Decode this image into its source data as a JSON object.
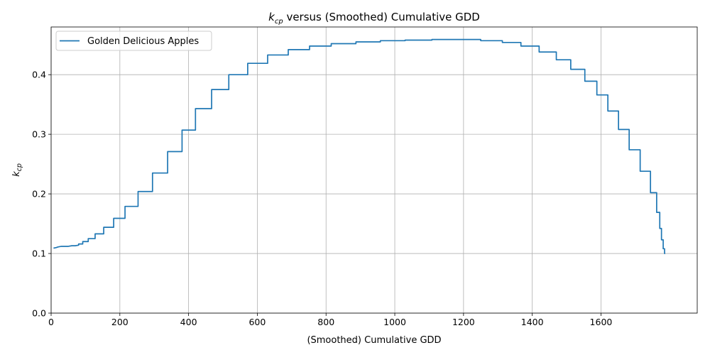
{
  "chart_data": {
    "type": "line",
    "title_parts": {
      "k": "k",
      "sub": "cp",
      "rest": " versus (Smoothed) Cumulative GDD"
    },
    "xlabel": "(Smoothed) Cumulative GDD",
    "ylabel_parts": {
      "k": "k",
      "sub": "cp"
    },
    "xlim": [
      0,
      1880
    ],
    "ylim": [
      0,
      0.48
    ],
    "xticks": [
      0,
      200,
      400,
      600,
      800,
      1000,
      1200,
      1400,
      1600
    ],
    "xtick_labels": [
      "0",
      "200",
      "400",
      "600",
      "800",
      "1000",
      "1200",
      "1400",
      "1600"
    ],
    "yticks": [
      0.0,
      0.1,
      0.2,
      0.3,
      0.4
    ],
    "ytick_labels": [
      "0.0",
      "0.1",
      "0.2",
      "0.3",
      "0.4"
    ],
    "grid": true,
    "legend_position": "upper-left",
    "series": [
      {
        "name": "Golden Delicious Apples",
        "color": "#1f77b4",
        "x": [
          7,
          15,
          20,
          30,
          40,
          50,
          60,
          70,
          80,
          80,
          92,
          92,
          108,
          108,
          128,
          128,
          153,
          153,
          182,
          182,
          215,
          215,
          253,
          253,
          295,
          295,
          339,
          339,
          381,
          381,
          420,
          420,
          467,
          467,
          517,
          517,
          572,
          572,
          630,
          630,
          690,
          690,
          752,
          752,
          815,
          815,
          887,
          887,
          958,
          958,
          1030,
          1030,
          1108,
          1108,
          1190,
          1190,
          1250,
          1250,
          1313,
          1313,
          1367,
          1367,
          1420,
          1420,
          1470,
          1470,
          1512,
          1512,
          1553,
          1553,
          1588,
          1588,
          1620,
          1620,
          1651,
          1651,
          1682,
          1682,
          1714,
          1714,
          1744,
          1744,
          1762,
          1762,
          1771,
          1771,
          1776,
          1776,
          1781,
          1781,
          1785,
          1785,
          1787
        ],
        "y": [
          0.109,
          0.11,
          0.111,
          0.112,
          0.112,
          0.112,
          0.113,
          0.113,
          0.114,
          0.116,
          0.116,
          0.12,
          0.12,
          0.125,
          0.125,
          0.133,
          0.133,
          0.144,
          0.144,
          0.159,
          0.159,
          0.179,
          0.179,
          0.204,
          0.204,
          0.235,
          0.235,
          0.271,
          0.271,
          0.307,
          0.307,
          0.343,
          0.343,
          0.375,
          0.375,
          0.4,
          0.4,
          0.419,
          0.419,
          0.433,
          0.433,
          0.442,
          0.442,
          0.448,
          0.448,
          0.452,
          0.452,
          0.455,
          0.455,
          0.457,
          0.457,
          0.458,
          0.458,
          0.459,
          0.459,
          0.459,
          0.459,
          0.457,
          0.457,
          0.454,
          0.454,
          0.448,
          0.448,
          0.438,
          0.438,
          0.425,
          0.425,
          0.409,
          0.409,
          0.389,
          0.389,
          0.366,
          0.366,
          0.339,
          0.339,
          0.308,
          0.308,
          0.274,
          0.274,
          0.238,
          0.238,
          0.202,
          0.202,
          0.169,
          0.169,
          0.142,
          0.142,
          0.123,
          0.123,
          0.108,
          0.108,
          0.1,
          0.1
        ]
      }
    ]
  }
}
